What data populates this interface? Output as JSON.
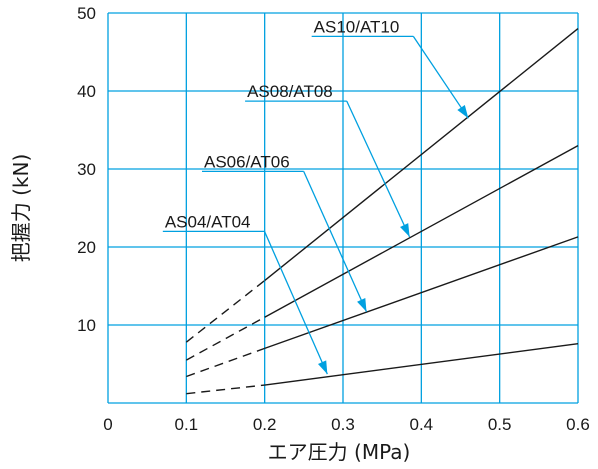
{
  "chart_data": {
    "type": "line",
    "xlabel": "エア圧力 (MPa)",
    "ylabel": "把握力 (kN)",
    "xlim": [
      0,
      0.6
    ],
    "ylim": [
      0,
      50
    ],
    "x_ticks": [
      "0",
      "0.1",
      "0.2",
      "0.3",
      "0.4",
      "0.5",
      "0.6"
    ],
    "y_ticks": [
      "10",
      "20",
      "30",
      "40",
      "50"
    ],
    "grid": true,
    "colors": {
      "grid": "#00a0e0",
      "line": "#1a1a1a",
      "leader": "#00a0e0"
    },
    "series": [
      {
        "name": "AS04/AT04",
        "x": [
          0.1,
          0.2,
          0.6
        ],
        "y": [
          1.2,
          2.3,
          7.6
        ],
        "dashed_until": 0.2,
        "pointer_at": [
          0.28,
          3.7
        ],
        "label_at": [
          0.07,
          22
        ]
      },
      {
        "name": "AS06/AT06",
        "x": [
          0.1,
          0.2,
          0.6
        ],
        "y": [
          3.4,
          7.0,
          21.3
        ],
        "dashed_until": 0.2,
        "pointer_at": [
          0.33,
          11.7
        ],
        "label_at": [
          0.12,
          29.7
        ]
      },
      {
        "name": "AS08/AT08",
        "x": [
          0.1,
          0.2,
          0.6
        ],
        "y": [
          5.5,
          11.0,
          33.0
        ],
        "dashed_until": 0.2,
        "pointer_at": [
          0.385,
          21.3
        ],
        "label_at": [
          0.175,
          38.7
        ]
      },
      {
        "name": "AS10/AT10",
        "x": [
          0.1,
          0.2,
          0.6
        ],
        "y": [
          7.8,
          15.7,
          48.0
        ],
        "dashed_until": 0.2,
        "pointer_at": [
          0.46,
          36.5
        ],
        "label_at": [
          0.26,
          47.0
        ]
      }
    ]
  }
}
